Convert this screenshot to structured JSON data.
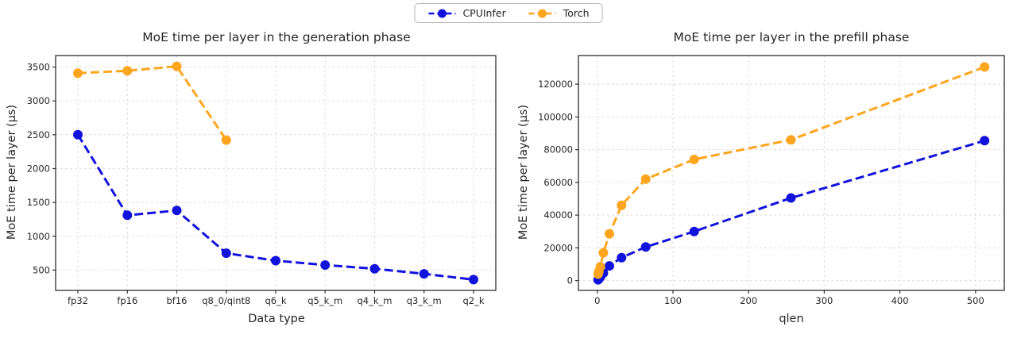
{
  "legend": {
    "entries": [
      {
        "label": "CPUInfer",
        "color": "#1212dd"
      },
      {
        "label": "Torch",
        "color": "#ffa51e"
      }
    ]
  },
  "chart_data": [
    {
      "type": "line",
      "title": "MoE time per layer in the generation phase",
      "xlabel": "Data type",
      "ylabel": "MoE time per layer (µs)",
      "x_type": "categorical",
      "categories": [
        "fp32",
        "fp16",
        "bf16",
        "q8_0/qint8",
        "q6_k",
        "q5_k_m",
        "q4_k_m",
        "q3_k_m",
        "q2_k"
      ],
      "yticks": [
        500,
        1000,
        1500,
        2000,
        2500,
        3000,
        3500
      ],
      "ylim": [
        200,
        3670
      ],
      "grid": true,
      "legend_position": "top-center-shared",
      "line_style": "dashed",
      "marker": "circle",
      "series": [
        {
          "name": "CPUInfer",
          "color": "#1212dd",
          "values": [
            2500,
            1310,
            1380,
            750,
            640,
            575,
            520,
            445,
            360
          ]
        },
        {
          "name": "Torch",
          "color": "#ffa51e",
          "values": [
            3410,
            3445,
            3510,
            2420,
            null,
            null,
            null,
            null,
            null
          ]
        }
      ]
    },
    {
      "type": "line",
      "title": "MoE time per layer in the prefill phase",
      "xlabel": "qlen",
      "ylabel": "MoE time per layer (µs)",
      "x_type": "numeric",
      "x": [
        1,
        2,
        4,
        8,
        16,
        32,
        64,
        128,
        256,
        512
      ],
      "xticks": [
        0,
        100,
        200,
        300,
        400,
        500
      ],
      "xlim": [
        -25,
        538
      ],
      "yticks": [
        0,
        20000,
        40000,
        60000,
        80000,
        100000,
        120000
      ],
      "ylim": [
        -6000,
        137500
      ],
      "grid": true,
      "legend_position": "top-center-shared",
      "line_style": "dashed",
      "marker": "circle",
      "series": [
        {
          "name": "CPUInfer",
          "color": "#1212dd",
          "values": [
            500,
            1000,
            2200,
            4500,
            9000,
            14000,
            20500,
            30000,
            50500,
            85500
          ]
        },
        {
          "name": "Torch",
          "color": "#ffa51e",
          "values": [
            4000,
            5500,
            8500,
            17000,
            28500,
            46000,
            62000,
            74000,
            86000,
            130500
          ]
        }
      ]
    }
  ]
}
